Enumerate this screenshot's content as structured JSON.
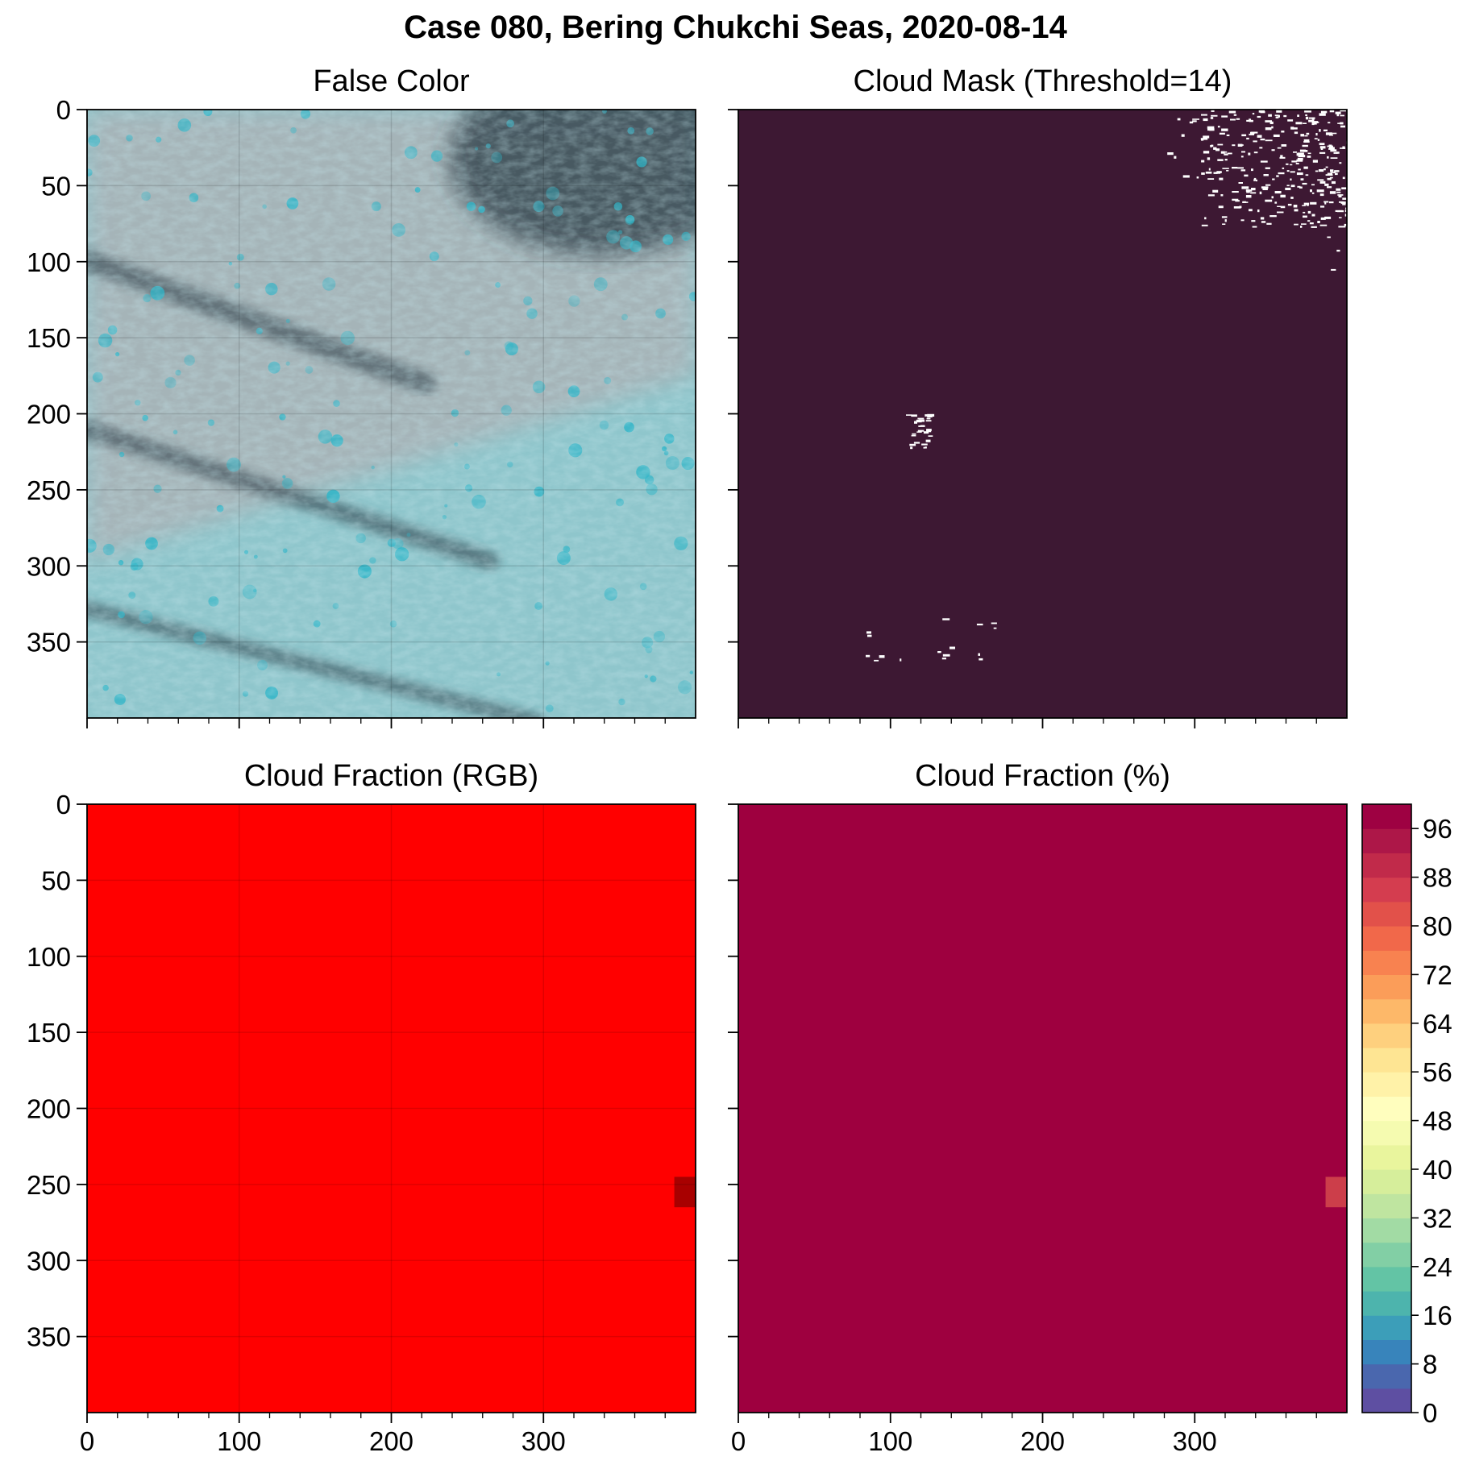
{
  "figure": {
    "title": "Case 080, Bering Chukchi Seas, 2020-08-14"
  },
  "colors": {
    "mask_background": "#3d1833",
    "mask_cloud": "#ffffff",
    "rgb_fraction": "#ff0000",
    "rgb_fraction_low": "#a80000",
    "percent_fraction": "#9e003f",
    "percent_fraction_low": "#cc3e4a",
    "false_color_ice": "#8fc6cc",
    "false_color_pink": "#b8a6a9",
    "false_color_dark": "#2a3a44",
    "false_color_cyan": "#2fb5c8"
  },
  "chart_data": [
    {
      "id": "false-color",
      "type": "heatmap",
      "title": "False Color",
      "xlim": [
        0,
        400
      ],
      "ylim": [
        400,
        0
      ],
      "xticks": [
        0,
        100,
        200,
        300
      ],
      "yticks": [
        0,
        50,
        100,
        150,
        200,
        250,
        300,
        350
      ],
      "x_ticklabels_shown": false,
      "y_ticklabels_shown": true,
      "grid": true,
      "content": "false-color satellite image of sea ice"
    },
    {
      "id": "cloud-mask",
      "type": "heatmap",
      "title": "Cloud Mask (Threshold=14)",
      "xlim": [
        0,
        400
      ],
      "ylim": [
        400,
        0
      ],
      "xticks": [
        0,
        100,
        200,
        300
      ],
      "yticks": [
        0,
        50,
        100,
        150,
        200,
        250,
        300,
        350
      ],
      "x_ticklabels_shown": false,
      "y_ticklabels_shown": false,
      "grid": false,
      "cloud_regions": [
        {
          "x": [
            240,
            400
          ],
          "y": [
            0,
            110
          ],
          "density": "scattered"
        },
        {
          "x": [
            110,
            125
          ],
          "y": [
            200,
            222
          ],
          "density": "small cluster"
        },
        {
          "x": [
            75,
            170
          ],
          "y": [
            333,
            362
          ],
          "density": "sparse"
        }
      ]
    },
    {
      "id": "cloud-fraction-rgb",
      "type": "heatmap",
      "title": "Cloud Fraction (RGB)",
      "xlim": [
        0,
        400
      ],
      "ylim": [
        400,
        0
      ],
      "xticks": [
        0,
        100,
        200,
        300
      ],
      "xticklabels": [
        "0",
        "100",
        "200",
        "300"
      ],
      "yticks": [
        0,
        50,
        100,
        150,
        200,
        250,
        300,
        350
      ],
      "x_ticklabels_shown": true,
      "y_ticklabels_shown": true,
      "grid": true,
      "uniform_value": "high",
      "anomaly_cell": {
        "x": [
          386,
          400
        ],
        "y": [
          245,
          265
        ],
        "value": "lower"
      }
    },
    {
      "id": "cloud-fraction-percent",
      "type": "heatmap",
      "title": "Cloud Fraction (%)",
      "xlim": [
        0,
        400
      ],
      "ylim": [
        400,
        0
      ],
      "xticks": [
        0,
        100,
        200,
        300
      ],
      "xticklabels": [
        "0",
        "100",
        "200",
        "300"
      ],
      "yticks": [
        0,
        50,
        100,
        150,
        200,
        250,
        300,
        350
      ],
      "x_ticklabels_shown": true,
      "y_ticklabels_shown": false,
      "grid": false,
      "uniform_value": 98,
      "anomaly_cell": {
        "x": [
          386,
          400
        ],
        "y": [
          245,
          265
        ],
        "value": 86
      },
      "colorbar": {
        "vmin": 0,
        "vmax": 100,
        "levels": 25,
        "step": 4,
        "ticks": [
          0,
          8,
          16,
          24,
          32,
          40,
          48,
          56,
          64,
          72,
          80,
          88,
          96
        ],
        "colors": [
          "#5e4fa2",
          "#4a67ae",
          "#3884bb",
          "#3c9eb9",
          "#4db4ad",
          "#63c4a5",
          "#82cfa5",
          "#a2dba4",
          "#bfe5a0",
          "#d6ee9b",
          "#e9f59d",
          "#f5fbb0",
          "#fffebe",
          "#fff2a8",
          "#fee593",
          "#fed07e",
          "#fdb869",
          "#fb9d59",
          "#f88250",
          "#f1684a",
          "#e2514a",
          "#d43d4f",
          "#c12a4a",
          "#ad1748",
          "#9e0142"
        ]
      },
      "yticklabels": [
        "0",
        "50",
        "100",
        "150",
        "200",
        "250",
        "300",
        "350"
      ]
    }
  ]
}
